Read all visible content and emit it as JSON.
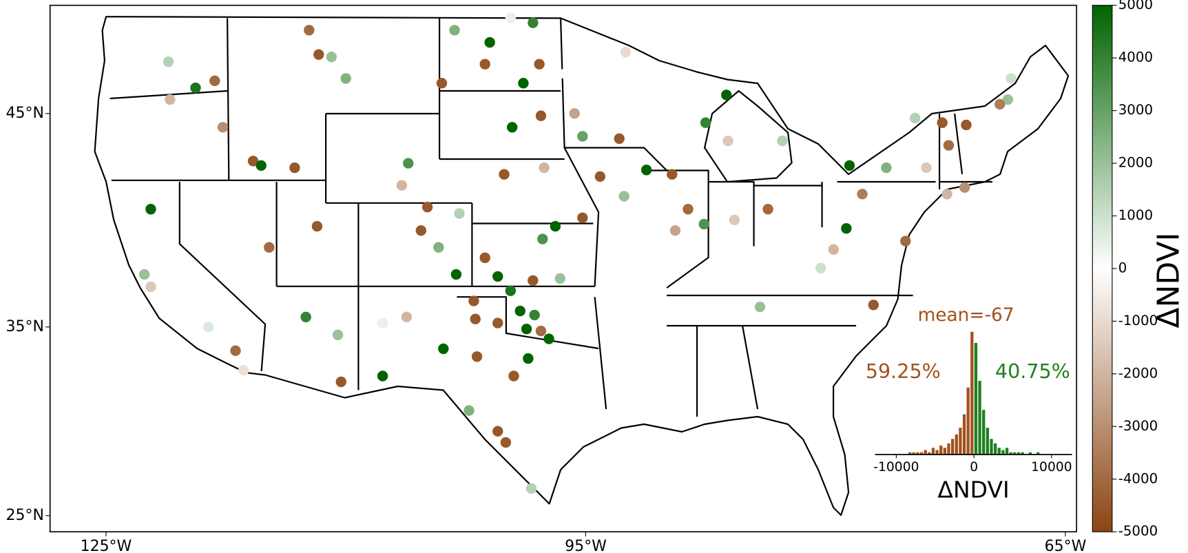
{
  "chart_data": [
    {
      "type": "scatter",
      "projection": "mercator",
      "x": [
        -122.2,
        -119.4,
        -118.2,
        -121,
        -121.1,
        -117.7,
        -115.8,
        -115.3,
        -113.2,
        -111.8,
        -114.8,
        -122.2,
        -122.6,
        -116.9,
        -116.4,
        -118.6,
        -112.5,
        -110.3,
        -110.5,
        -107.7,
        -112.3,
        -111.7,
        -110.9,
        -110,
        -106.1,
        -106.5,
        -105.3,
        -104.9,
        -104.2,
        -102.9,
        -103.2,
        -101,
        -101.3,
        -98.9,
        -97.9,
        -98.3,
        -104,
        -97.8,
        -99.6,
        -100.1,
        -97.6,
        -96.9,
        -95.2,
        -97.7,
        -101.3,
        -103.1,
        -100.5,
        -98.3,
        -96.6,
        -99.7,
        -102,
        -101.9,
        -99.1,
        -98.7,
        -97.3,
        -98.2,
        -97.8,
        -103.9,
        -101.8,
        -99.5,
        -98.6,
        -102.3,
        -100.5,
        -100,
        -98.4,
        -100.5,
        -95.7,
        -95.2,
        -92.9,
        -91.2,
        -94.1,
        -92.6,
        -92.5,
        -89.6,
        -87.6,
        -88.6,
        -89.4,
        -86.2,
        -87.5,
        -86.1,
        -83.6,
        -85.7,
        -82.7,
        -78.5,
        -78.7,
        -79.5,
        -80.3,
        -84.1,
        -77,
        -75,
        -77.7,
        -76.2,
        -72.7,
        -71.2,
        -68.6,
        -69.1,
        -71.3,
        -72.4,
        -73.7,
        -74.4,
        -68.4,
        -72.3,
        -99.7,
        -96.3,
        -106.2,
        -107.7
      ],
      "y": [
        40.7,
        46.1,
        46.4,
        45.6,
        47.2,
        44.4,
        42.9,
        42.7,
        42.6,
        39.9,
        38.9,
        37,
        37.6,
        33.8,
        32.8,
        35,
        35.5,
        32.2,
        34.6,
        32.5,
        48.5,
        47.5,
        47.4,
        46.5,
        42.8,
        41.8,
        39.7,
        40.8,
        38.9,
        40.5,
        48.5,
        48,
        47.1,
        46.3,
        47.1,
        48.8,
        46.3,
        44.9,
        44.4,
        42.3,
        42.6,
        39.9,
        40.3,
        39.3,
        38.4,
        37.6,
        37.5,
        37.3,
        37.4,
        36.8,
        36.3,
        35.4,
        35.8,
        34.9,
        34.4,
        35.6,
        34.8,
        33.9,
        33.5,
        32.5,
        33.4,
        30.7,
        29.6,
        29,
        26.5,
        35.2,
        45,
        44,
        43.9,
        42.5,
        42.2,
        41.3,
        47.6,
        42.3,
        40,
        40.7,
        39.7,
        45.8,
        44.6,
        43.8,
        40.7,
        40.2,
        43.8,
        42.7,
        39.8,
        38.8,
        37.9,
        36,
        36.1,
        39.2,
        41.4,
        42.6,
        44.6,
        44.5,
        45.6,
        45.4,
        41.7,
        41.4,
        42.6,
        44.8,
        46.5,
        43.6,
        49,
        46.7,
        35.5,
        35.2
      ],
      "values": [
        5000,
        4500,
        -4000,
        -2000,
        1500,
        -3000,
        -4500,
        5000,
        -4500,
        -4500,
        -4000,
        -1500,
        2000,
        -4000,
        -800,
        700,
        4000,
        -4500,
        2000,
        5000,
        -4000,
        -4500,
        2000,
        2500,
        3500,
        -2000,
        -4500,
        -4500,
        2500,
        1500,
        2500,
        5000,
        -4500,
        5000,
        -4500,
        4000,
        -4500,
        -4500,
        5000,
        -4500,
        -2000,
        5000,
        -4500,
        3500,
        -4500,
        5000,
        5000,
        -4500,
        2000,
        4500,
        -4500,
        -4500,
        5000,
        5000,
        5000,
        4000,
        -4000,
        5000,
        -4500,
        -4500,
        5000,
        2500,
        -4500,
        -4500,
        1500,
        -4500,
        -2500,
        3000,
        -4500,
        5000,
        -4500,
        2000,
        -1000,
        -4500,
        3500,
        -4000,
        -2500,
        5000,
        4000,
        -1500,
        -4000,
        -1500,
        1500,
        5000,
        5000,
        -2000,
        1000,
        2000,
        -4500,
        -4000,
        -3500,
        2500,
        -4500,
        -4500,
        2000,
        -3500,
        -3000,
        -2000,
        -1500,
        1500,
        1000,
        -4000,
        -500,
        0,
        -2000,
        -500
      ],
      "xlim": [
        -128.5,
        -64.3
      ],
      "ylim": [
        24.1,
        49.5
      ],
      "xticks": [
        {
          "value": -125,
          "label": "125°W"
        },
        {
          "value": -95,
          "label": "95°W"
        },
        {
          "value": -65,
          "label": "65°W"
        }
      ],
      "yticks": [
        {
          "value": 25,
          "label": "25°N"
        },
        {
          "value": 35,
          "label": "35°N"
        },
        {
          "value": 45,
          "label": "45°N"
        }
      ],
      "colorbar": {
        "label": "ΔNDVI",
        "lim": [
          -5000,
          5000
        ],
        "ticks": [
          -5000,
          -4000,
          -3000,
          -2000,
          -1000,
          0,
          1000,
          2000,
          3000,
          4000,
          5000
        ],
        "colors": [
          "#8b4513",
          "#ffffff",
          "#006400"
        ]
      }
    },
    {
      "type": "histogram",
      "bins": [
        -10000,
        -9500,
        -9000,
        -8500,
        -8000,
        -7500,
        -7000,
        -6500,
        -6000,
        -5500,
        -5000,
        -4500,
        -4000,
        -3500,
        -3000,
        -2500,
        -2000,
        -1500,
        -1000,
        -500,
        0,
        500,
        1000,
        1500,
        2000,
        2500,
        3000,
        3500,
        4000,
        4500,
        5000,
        5500,
        6000,
        6500,
        7000,
        7500,
        8000,
        8500,
        9000,
        9500,
        10000
      ],
      "counts": [
        0,
        0,
        0,
        1,
        1,
        1,
        1,
        2,
        1,
        3,
        2,
        4,
        3,
        5,
        7,
        9,
        12,
        18,
        30,
        55,
        50,
        33,
        20,
        12,
        7,
        5,
        3,
        2,
        3,
        1,
        1,
        1,
        1,
        0,
        1,
        0,
        1,
        0,
        0,
        0
      ],
      "colors": {
        "negative": "#a0521d",
        "positive": "#1f7f1f"
      },
      "xlim": [
        -10000,
        10000
      ],
      "ylim": [
        0,
        56
      ],
      "xticks": [
        -10000,
        0,
        10000
      ],
      "xlabel": "ΔNDVI",
      "annotations": [
        {
          "text": "mean=-67",
          "color": "#a0521d"
        },
        {
          "text": "59.25%",
          "color": "#a0521d"
        },
        {
          "text": "40.75%",
          "color": "#1f7f1f"
        }
      ]
    }
  ]
}
